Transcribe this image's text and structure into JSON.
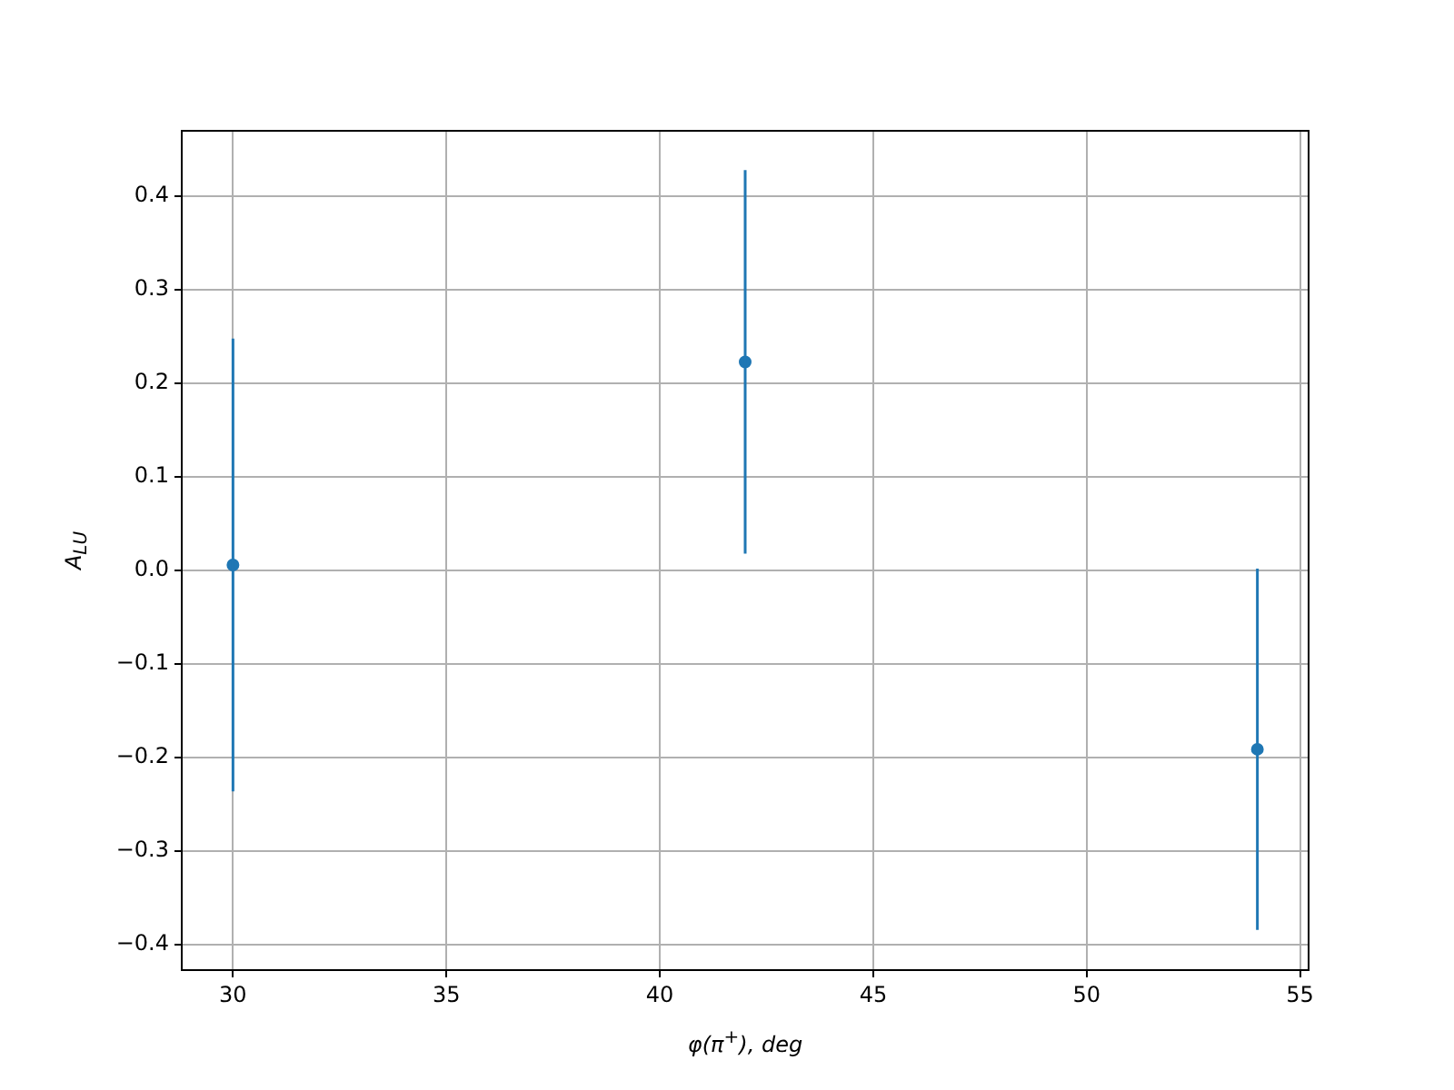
{
  "chart_data": {
    "type": "scatter",
    "xlabel": "φ(π$^{+}$), deg",
    "ylabel": "A$_{LU}$",
    "x": [
      30,
      42,
      54
    ],
    "series": [
      {
        "color": "#1f77b4",
        "values": [
          0.006,
          0.223,
          -0.191
        ],
        "errors": [
          0.242,
          0.205,
          0.193
        ]
      }
    ],
    "xlim": [
      28.8,
      55.2
    ],
    "xticks": [
      30,
      35,
      40,
      45,
      50,
      55
    ],
    "ylim": [
      -0.427,
      0.47
    ],
    "yticks": [
      {
        "value": -0.4,
        "label": "−0.4"
      },
      {
        "value": -0.3,
        "label": "−0.3"
      },
      {
        "value": -0.2,
        "label": "−0.2"
      },
      {
        "value": -0.1,
        "label": "−0.1"
      },
      {
        "value": 0,
        "label": "0.0"
      },
      {
        "value": 0.1,
        "label": "0.1"
      },
      {
        "value": 0.2,
        "label": "0.2"
      },
      {
        "value": 0.3,
        "label": "0.3"
      },
      {
        "value": 0.4,
        "label": "0.4"
      }
    ],
    "grid": true,
    "marker": "circle",
    "legend": false
  }
}
